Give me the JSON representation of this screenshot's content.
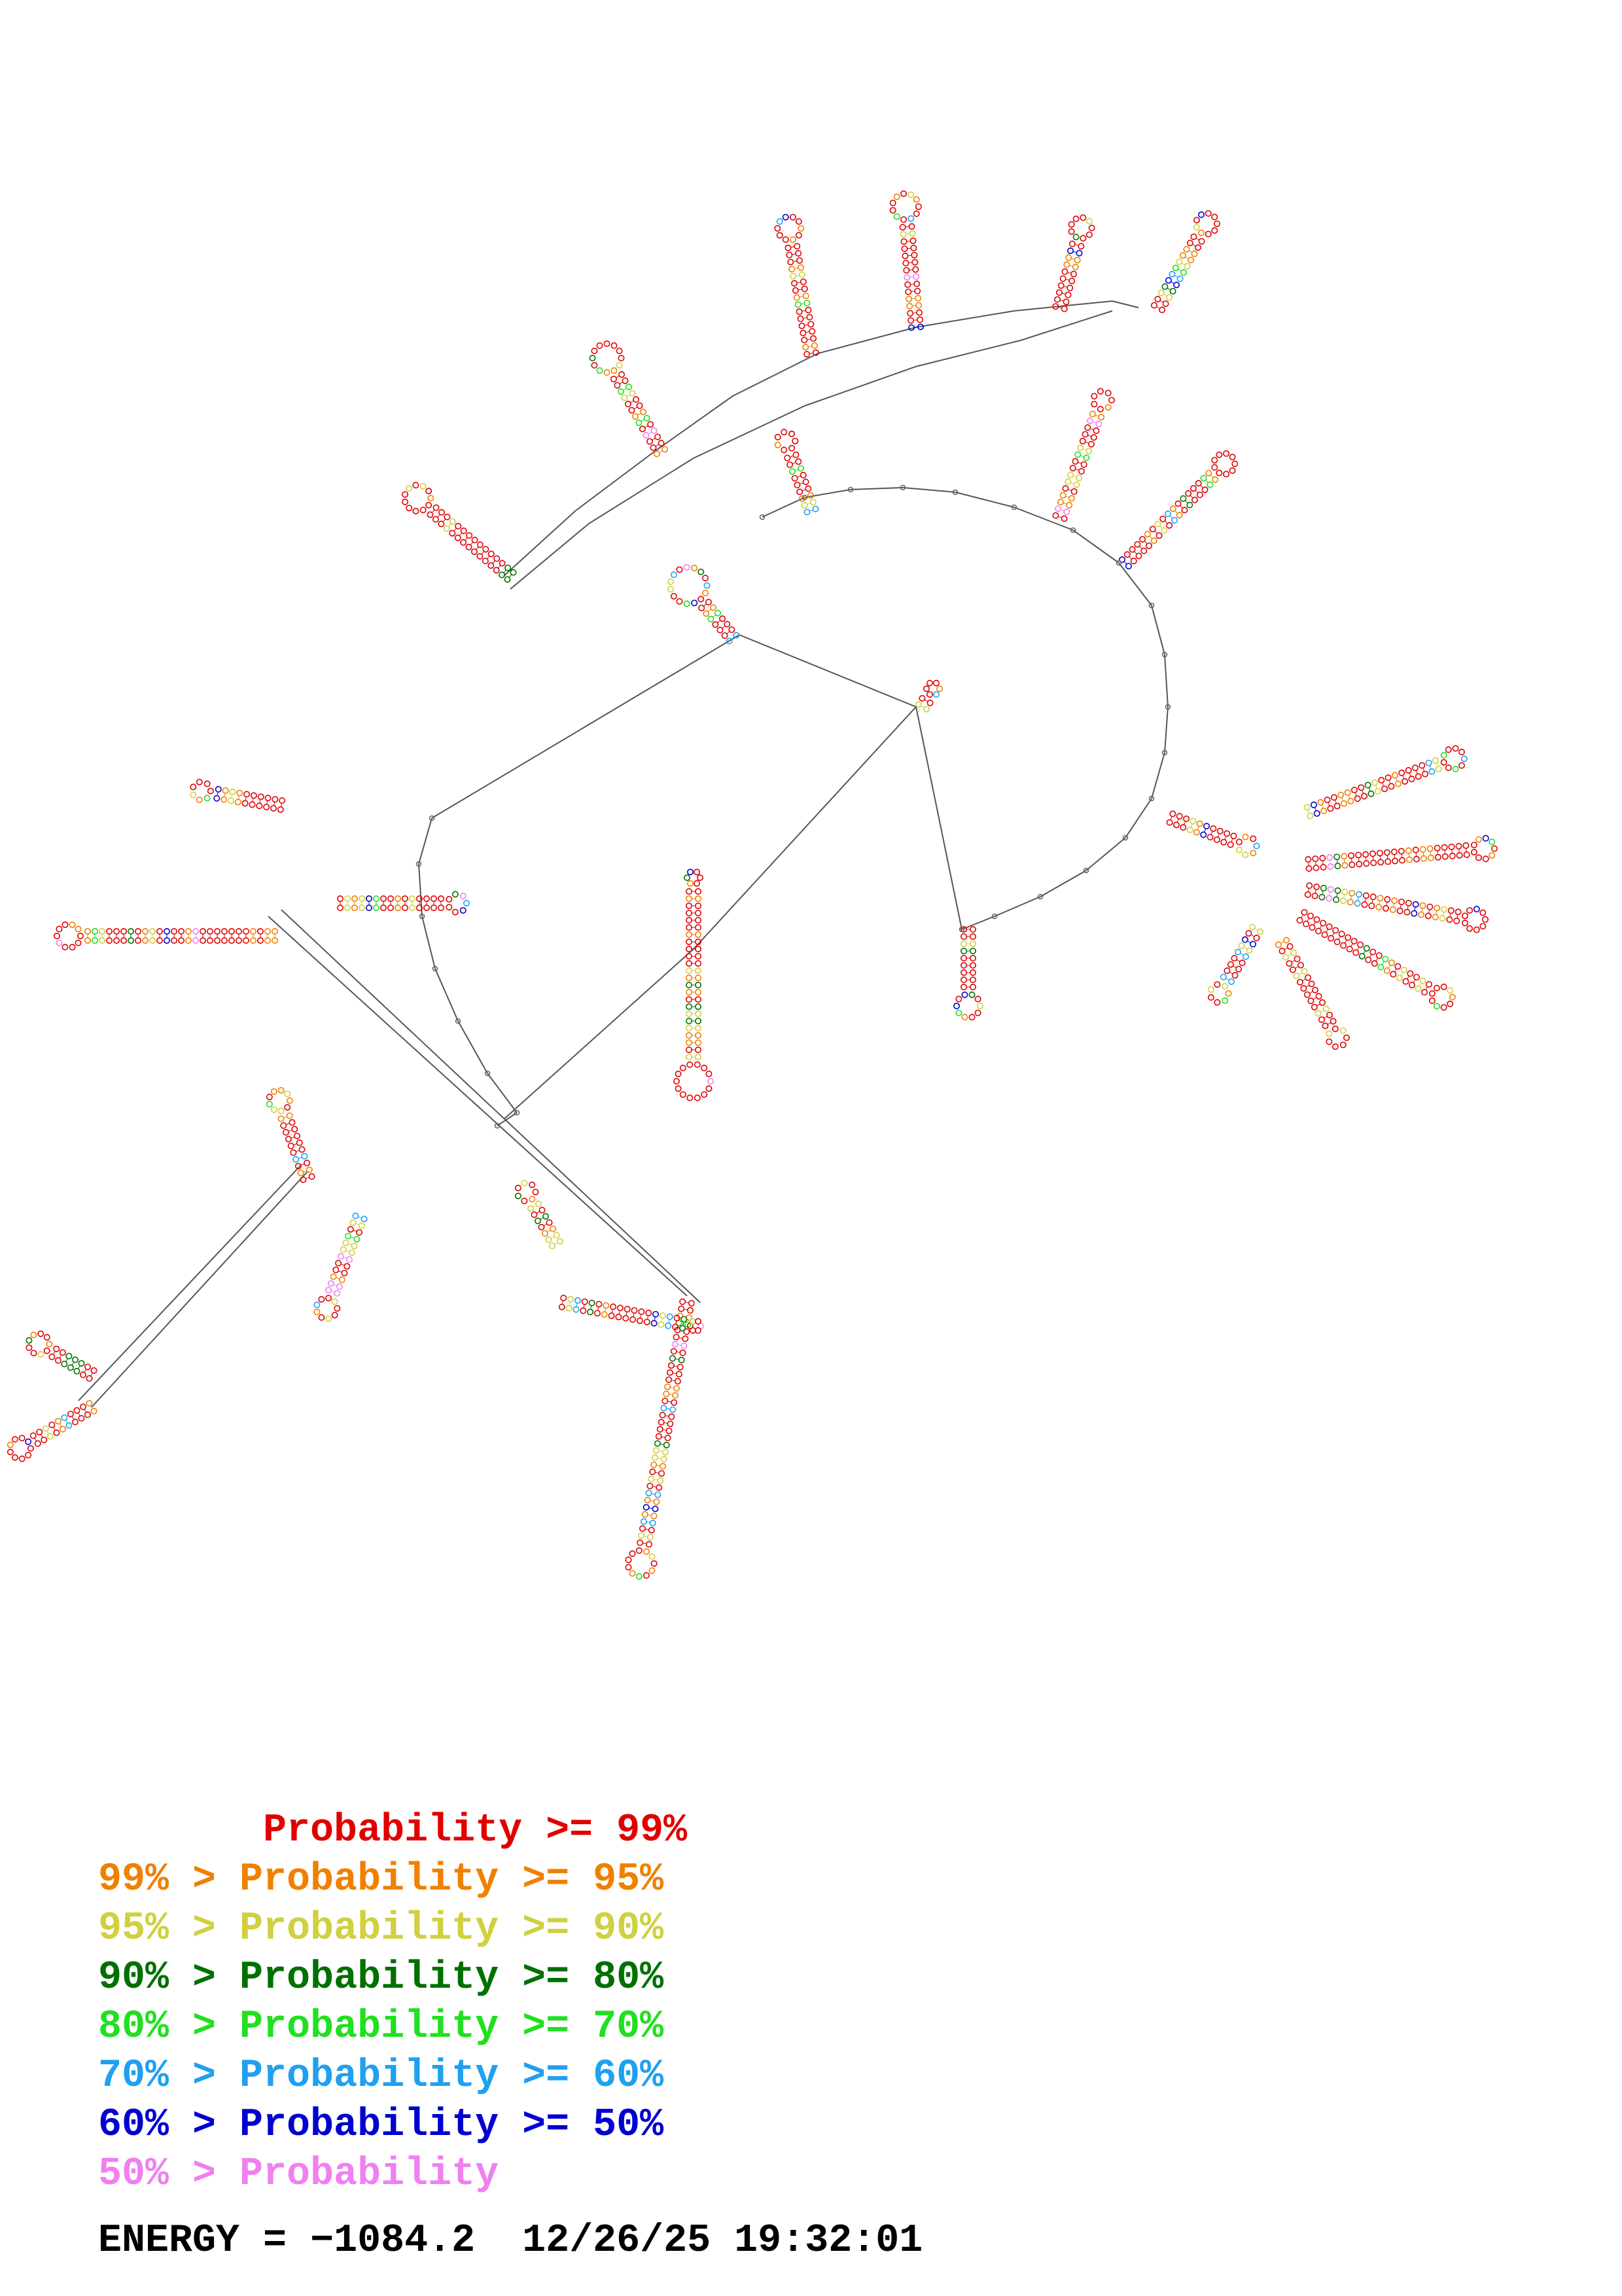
{
  "legend": {
    "rows": [
      {
        "text": "       Probability >= 99%",
        "color": "#e00000"
      },
      {
        "text": "99% > Probability >= 95%",
        "color": "#f08000"
      },
      {
        "text": "95% > Probability >= 90%",
        "color": "#d0d040"
      },
      {
        "text": "90% > Probability >= 80%",
        "color": "#007000"
      },
      {
        "text": "80% > Probability >= 70%",
        "color": "#20e020"
      },
      {
        "text": "70% > Probability >= 60%",
        "color": "#20a0f0"
      },
      {
        "text": "60% > Probability >= 50%",
        "color": "#0000d0"
      },
      {
        "text": "50% > Probability",
        "color": "#f080f0"
      }
    ]
  },
  "footer": {
    "energy_label": "ENERGY = ",
    "energy_value": "−1084.2",
    "timestamp": "12/26/25 19:32:01"
  }
}
